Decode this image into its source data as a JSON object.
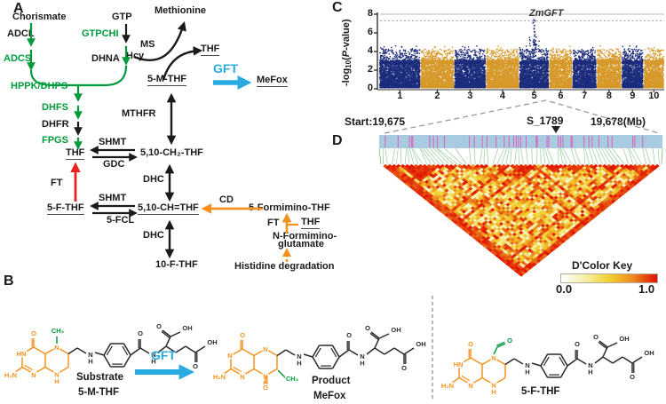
{
  "panels": {
    "a": "A",
    "b": "B",
    "c": "C",
    "d": "D"
  },
  "colors": {
    "enzyme_green": "#009a3c",
    "arrow_orange": "#f5921e",
    "gft_blue": "#29abe2",
    "ft_red": "#e8221d",
    "text_black": "#1a1a1a",
    "chrom_navy": "#1c2c7c",
    "chrom_gold": "#d6992a",
    "region_bar_blue": "#a8cbdf",
    "snp_tick_pink": "#dc64c2",
    "fan_line_green": "#4ca04c",
    "dash_gray": "#999999"
  },
  "pathway": {
    "labels": {
      "chorismate": "Chorismate",
      "gtp": "GTP",
      "methionine": "Methionine",
      "adcl": "ADCL",
      "gtpchi": "GTPCHI",
      "adcs": "ADCS",
      "dhna": "DHNA",
      "hcy": "Hcy",
      "ms": "MS",
      "thf_top": "THF",
      "m5thf": "5-M-THF",
      "gft": "GFT",
      "mefox": "MeFox",
      "hppk_dhps": "HPPK/DHPS",
      "dhfs": "DHFS",
      "dhfr": "DHFR",
      "fpgs": "FPGS",
      "thf_mid": "THF",
      "shmt1": "SHMT",
      "gdc": "GDC",
      "ch2thf": "5,10-CH₂-THF",
      "mthfr": "MTHFR",
      "ft1": "FT",
      "dhc1": "DHC",
      "f5thf": "5-F-THF",
      "shmt2": "SHMT",
      "fcl5": "5-FCL",
      "chthf": "5,10-CH=THF",
      "cd": "CD",
      "formimino": "5-Formimino-THF",
      "ft2": "FT",
      "thf_r": "THF",
      "nform1": "N-Formimino-",
      "nform2": "glutamate",
      "dhc2": "DHC",
      "f10thf": "10-F-THF",
      "histidine": "Histidine degradation"
    }
  },
  "chart_data": [
    {
      "type": "scatter",
      "name": "GWAS Manhattan plot",
      "ylabel": "-log10(P-value)",
      "ylabel_parts": {
        "prefix": "-log",
        "sub": "10",
        "open": "(",
        "p": "P",
        "rest": "-value)"
      },
      "ylim": [
        0,
        8
      ],
      "yticks": [
        "0",
        "2",
        "4",
        "6",
        "8"
      ],
      "categories": [
        "1",
        "2",
        "3",
        "4",
        "5",
        "6",
        "7",
        "8",
        "9",
        "10"
      ],
      "chrom_rel_sizes": [
        301,
        244,
        232,
        242,
        218,
        169,
        177,
        181,
        160,
        151
      ],
      "point_colors": [
        "#1c2c7c",
        "#d6992a"
      ],
      "significance_threshold": 7.3,
      "gridline_top": 8,
      "noise_ceiling": 4.6,
      "peak": {
        "chrom": "5",
        "label": "ZmGFT",
        "value": 7.6
      }
    },
    {
      "type": "heatmap",
      "name": "LD heatmap (D-prime)",
      "region_start_label": "Start:19,675",
      "lead_snp_label": "S_1789",
      "region_end_label": "19,678(Mb)",
      "n_snps": 64,
      "value_range": [
        0,
        1
      ],
      "color_key": {
        "title": "D'Color Key",
        "min_label": "0.0",
        "max_label": "1.0",
        "gradient": [
          "#ffffff",
          "#f6f0a8",
          "#f2d12e",
          "#ec8a1e",
          "#e01000"
        ]
      }
    }
  ],
  "structures": {
    "gft_label": "GFT",
    "atom_glyphs": {
      "h2n": "H₂N",
      "hn": "HN",
      "n": "N",
      "h": "H",
      "o": "O",
      "oh": "OH",
      "ch3": "CH₃"
    },
    "items": [
      {
        "caption1": "Substrate",
        "caption2": "5-M-THF",
        "variant": "5M"
      },
      {
        "caption1": "Product",
        "caption2": "MeFox",
        "variant": "MeFox"
      },
      {
        "caption1": "",
        "caption2": "5-F-THF",
        "variant": "5F"
      }
    ]
  }
}
